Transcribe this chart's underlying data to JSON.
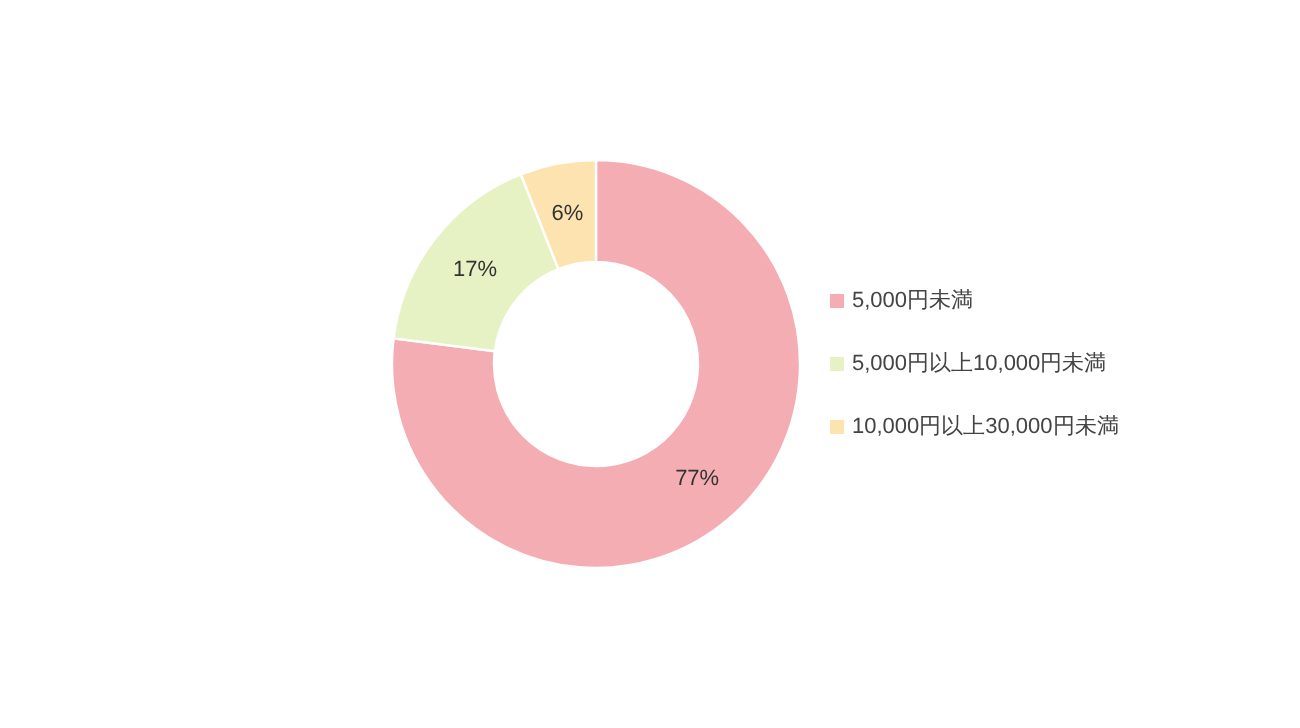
{
  "chart_data": {
    "type": "donut",
    "categories": [
      "5,000円未満",
      "5,000円以上10,000円未満",
      "10,000円以上30,000円未満"
    ],
    "values": [
      77,
      17,
      6
    ],
    "colors": [
      "#f4aeb3",
      "#e6f2c4",
      "#fde3b0"
    ],
    "value_labels": [
      "77%",
      "17%",
      "6%"
    ],
    "legend": "right"
  }
}
